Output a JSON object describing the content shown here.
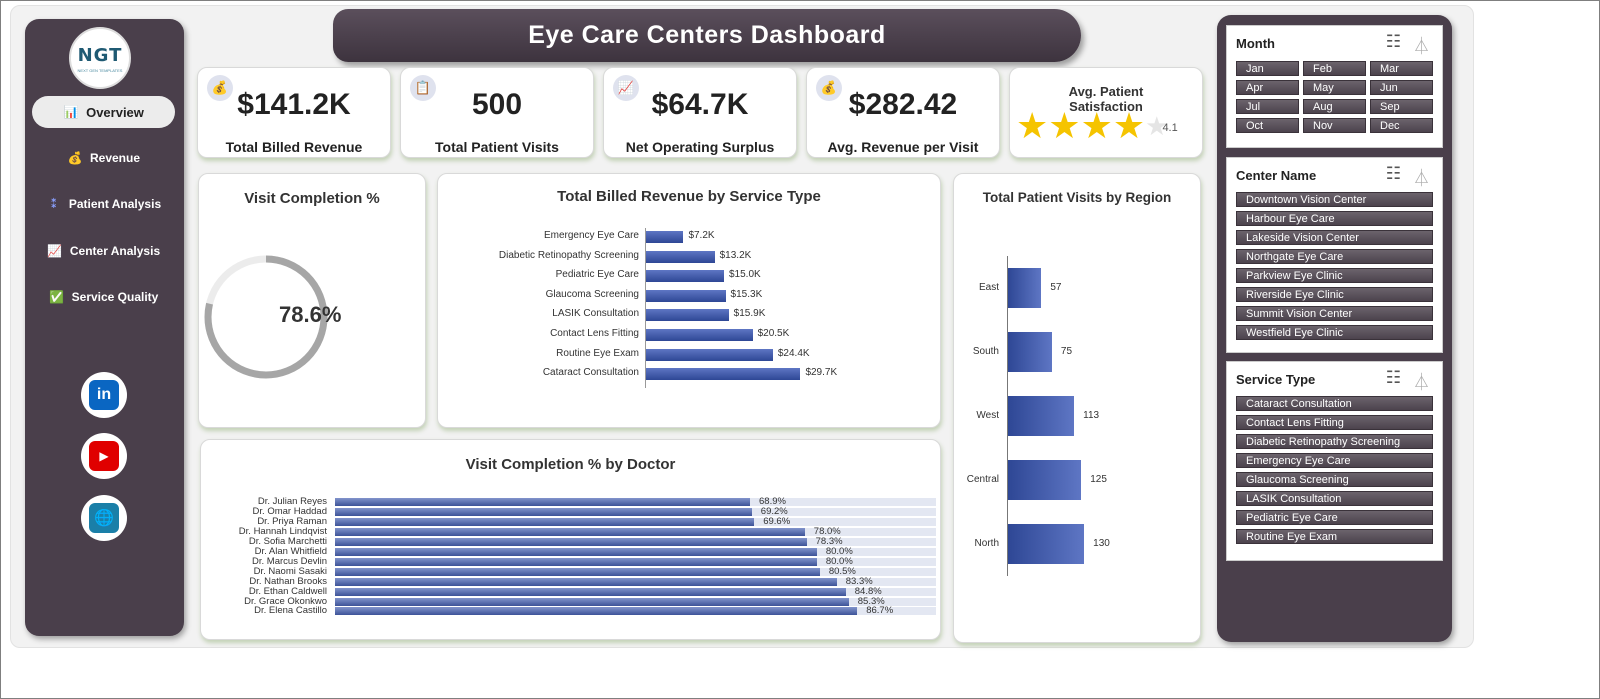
{
  "header": {
    "title": "Eye Care Centers Dashboard"
  },
  "logo": {
    "mark": "NGT",
    "sub": "NEXT GEN TEMPLATES"
  },
  "sidebar": {
    "items": [
      {
        "label": "Overview",
        "icon": "📊"
      },
      {
        "label": "Revenue",
        "icon": "💰"
      },
      {
        "label": "Patient Analysis",
        "icon": "⁑"
      },
      {
        "label": "Center Analysis",
        "icon": "📈"
      },
      {
        "label": "Service Quality",
        "icon": "✅"
      }
    ],
    "social": [
      {
        "name": "linkedin",
        "glyph": "in"
      },
      {
        "name": "youtube",
        "glyph": "▶"
      },
      {
        "name": "website",
        "glyph": "🌐"
      }
    ]
  },
  "kpis": [
    {
      "icon": "💰",
      "value": "$141.2K",
      "label": "Total Billed Revenue"
    },
    {
      "icon": "📋",
      "value": "500",
      "label": "Total Patient Visits"
    },
    {
      "icon": "📈",
      "value": "$64.7K",
      "label": "Net Operating Surplus"
    },
    {
      "icon": "💰",
      "value": "$282.42",
      "label": "Avg. Revenue per Visit"
    }
  ],
  "satisfaction": {
    "title": "Avg. Patient Satisfaction",
    "value": 4.1,
    "value_label": "4.1",
    "max": 5
  },
  "completion": {
    "title": "Visit Completion %",
    "value": 0.786,
    "label": "78.6%"
  },
  "chart_data": [
    {
      "type": "bar",
      "title": "Total Billed Revenue by Service Type",
      "orientation": "horizontal",
      "categories": [
        "Emergency Eye Care",
        "Diabetic Retinopathy Screening",
        "Pediatric Eye Care",
        "Glaucoma Screening",
        "LASIK Consultation",
        "Contact Lens Fitting",
        "Routine Eye Exam",
        "Cataract Consultation"
      ],
      "values": [
        7.2,
        13.2,
        15.0,
        15.3,
        15.9,
        20.5,
        24.4,
        29.7
      ],
      "labels": [
        "$7.2K",
        "$13.2K",
        "$15.0K",
        "$15.3K",
        "$15.9K",
        "$20.5K",
        "$24.4K",
        "$29.7K"
      ],
      "unit": "$K",
      "xlim": [
        0,
        30
      ]
    },
    {
      "type": "bar",
      "title": "Total Patient Visits by Region",
      "orientation": "horizontal",
      "categories": [
        "East",
        "South",
        "West",
        "Central",
        "North"
      ],
      "values": [
        57,
        75,
        113,
        125,
        130
      ],
      "labels": [
        "57",
        "75",
        "113",
        "125",
        "130"
      ],
      "xlim": [
        0,
        140
      ]
    },
    {
      "type": "bar",
      "title": "Visit Completion % by Doctor",
      "orientation": "horizontal",
      "categories": [
        "Dr. Julian Reyes",
        "Dr. Omar Haddad",
        "Dr. Priya Raman",
        "Dr. Hannah Lindqvist",
        "Dr. Sofia Marchetti",
        "Dr. Alan Whitfield",
        "Dr. Marcus Devlin",
        "Dr. Naomi Sasaki",
        "Dr. Nathan Brooks",
        "Dr. Ethan Caldwell",
        "Dr. Grace Okonkwo",
        "Dr. Elena Castillo"
      ],
      "values": [
        68.9,
        69.2,
        69.6,
        78.0,
        78.3,
        80.0,
        80.0,
        80.5,
        83.3,
        84.8,
        85.3,
        86.7
      ],
      "labels": [
        "68.9%",
        "69.2%",
        "69.6%",
        "78.0%",
        "78.3%",
        "80.0%",
        "80.0%",
        "80.5%",
        "83.3%",
        "84.8%",
        "85.3%",
        "86.7%"
      ],
      "unit": "%",
      "xlim": [
        0,
        100
      ]
    }
  ],
  "slicers": [
    {
      "title": "Month",
      "items": [
        "Jan",
        "Feb",
        "Mar",
        "Apr",
        "May",
        "Jun",
        "Jul",
        "Aug",
        "Sep",
        "Oct",
        "Nov",
        "Dec"
      ]
    },
    {
      "title": "Center Name",
      "items": [
        "Downtown Vision Center",
        "Harbour Eye Care",
        "Lakeside Vision Center",
        "Northgate Eye Care",
        "Parkview Eye Clinic",
        "Riverside Eye Clinic",
        "Summit Vision Center",
        "Westfield Eye Clinic"
      ]
    },
    {
      "title": "Service Type",
      "items": [
        "Cataract Consultation",
        "Contact Lens Fitting",
        "Diabetic Retinopathy Screening",
        "Emergency Eye Care",
        "Glaucoma Screening",
        "LASIK Consultation",
        "Pediatric Eye Care",
        "Routine Eye Exam"
      ]
    }
  ],
  "slicer_tools": {
    "multiselect_glyph": "☷",
    "clear_filter_glyph": "⏃"
  },
  "colors": {
    "panel": "#4a3f4b",
    "bar": "#2e4795",
    "star": "#f5c400",
    "ring": "#a6a6a6"
  }
}
